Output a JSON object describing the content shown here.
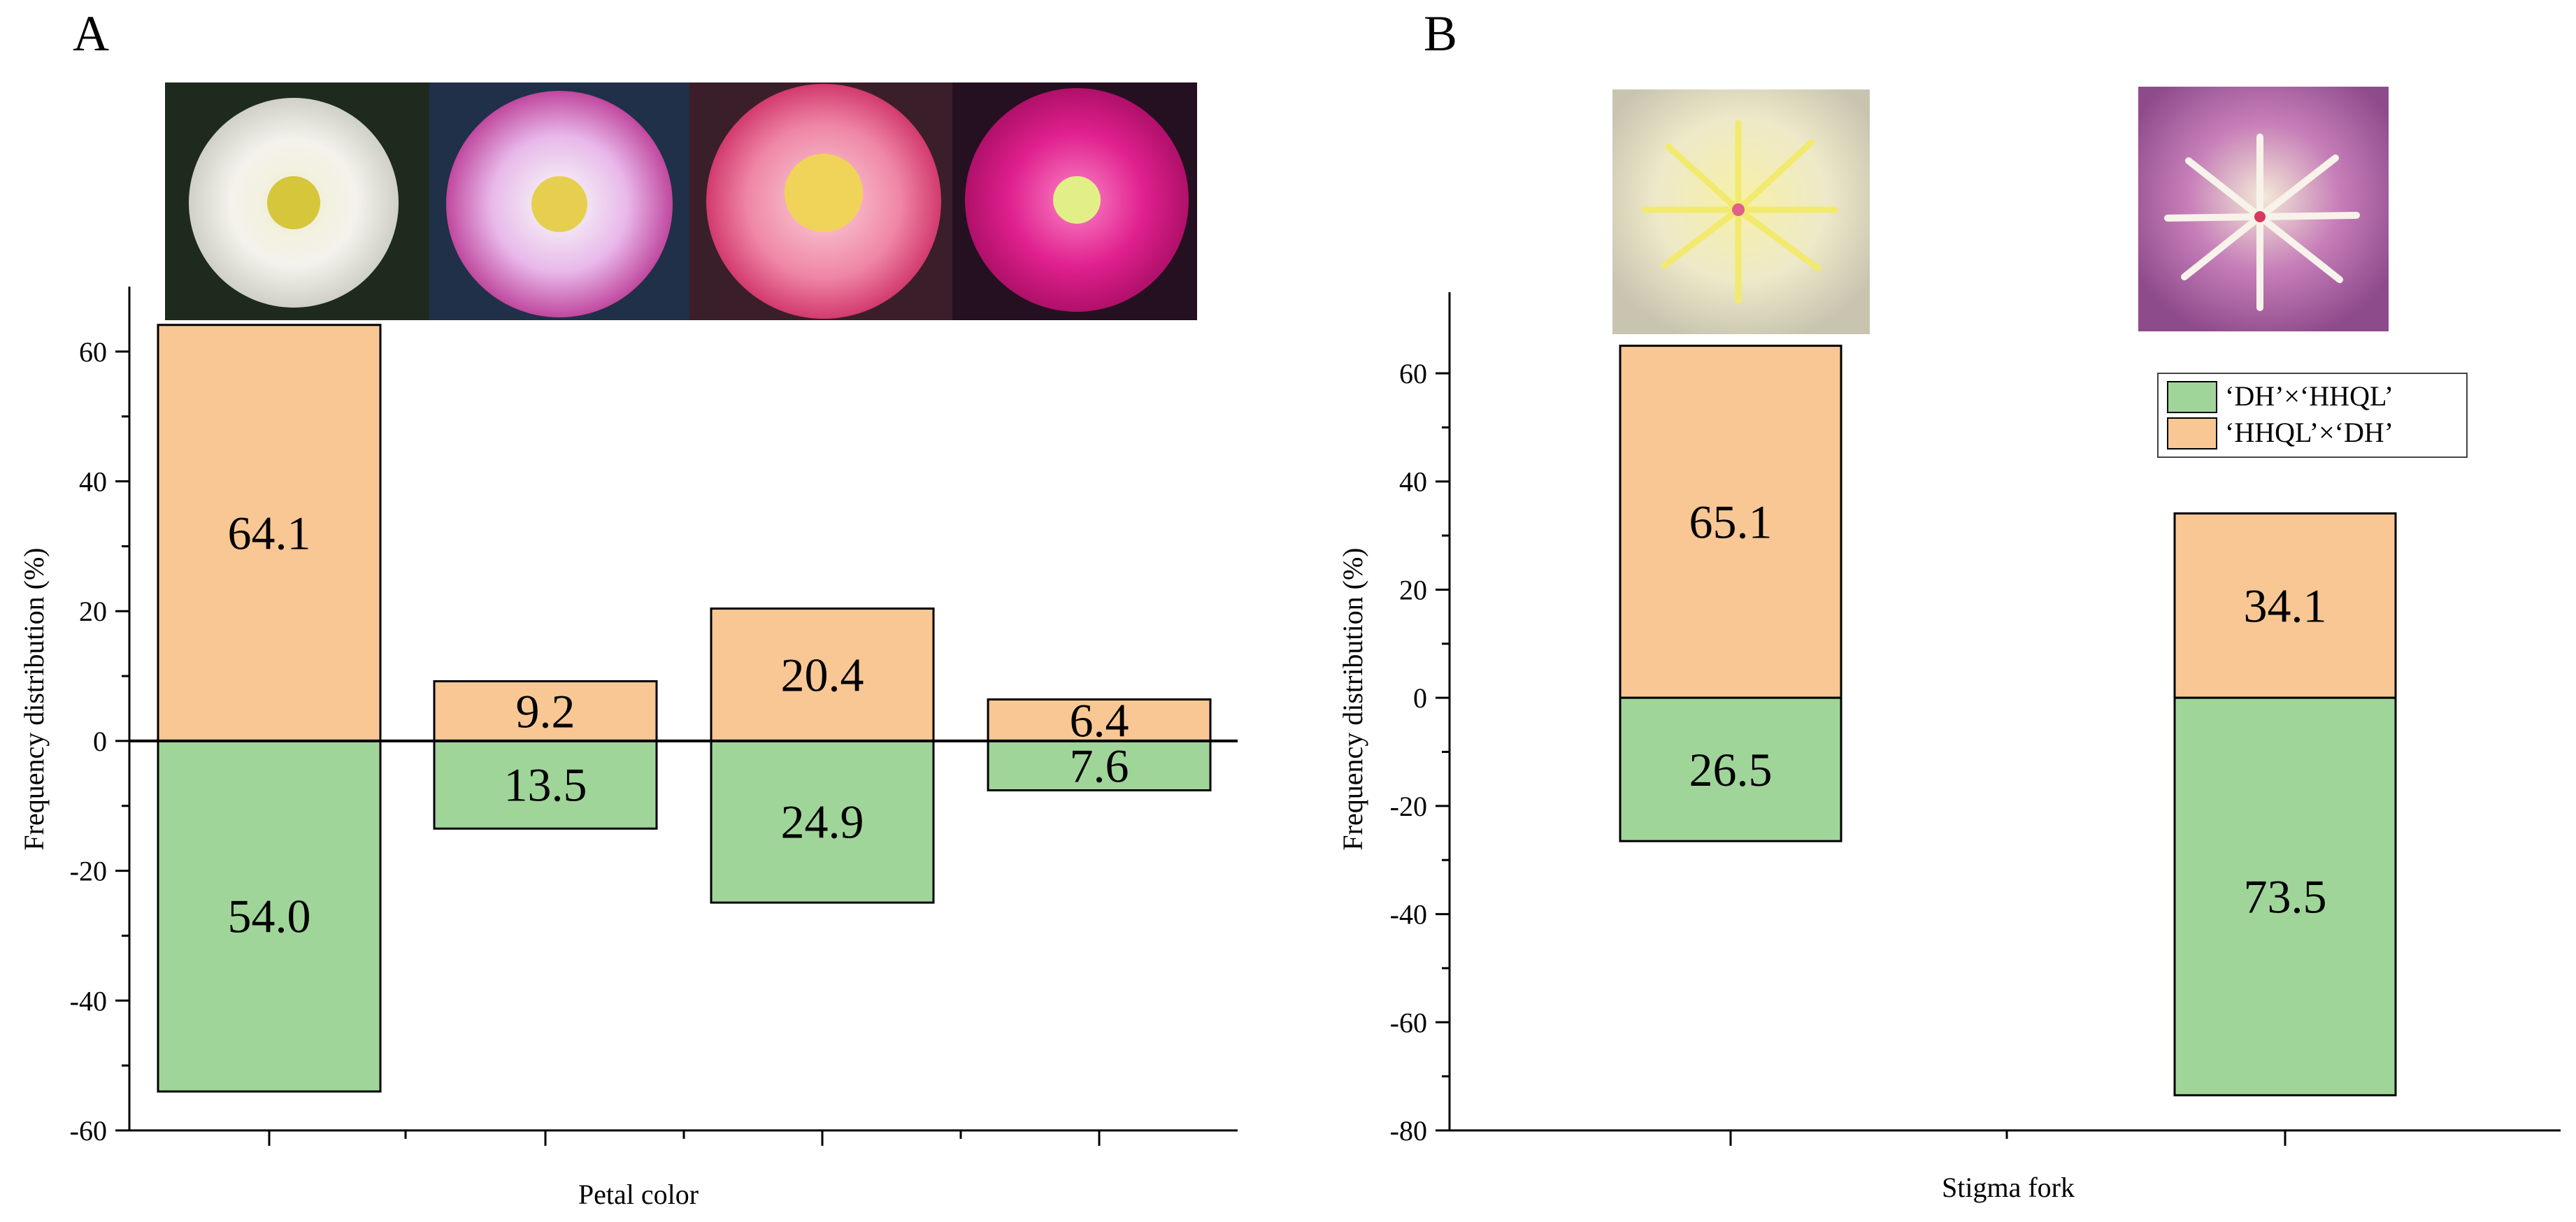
{
  "colors": {
    "hhql_x_dh": "#f8c794",
    "dh_x_hhql": "#a0d59a",
    "axis": "#000000"
  },
  "chart_data": [
    {
      "panel_label": "A",
      "type": "bar",
      "stacked": "diverging",
      "xlabel": "Petal color",
      "ylabel": "Frequency distribution (%)",
      "ylim": [
        -60,
        70
      ],
      "yticks": [
        -60,
        -40,
        -20,
        0,
        20,
        40,
        60
      ],
      "photos": [
        "white-flower-photo",
        "pale-pink-flower-photo",
        "pink-flower-photo",
        "magenta-flower-photo"
      ],
      "series": [
        {
          "key": "hhql_x_dh",
          "values": [
            64.1,
            9.2,
            20.4,
            6.4
          ],
          "labels": [
            "64.1",
            "9.2",
            "20.4",
            "6.4"
          ]
        },
        {
          "key": "dh_x_hhql",
          "values": [
            -54.0,
            -13.5,
            -24.9,
            -7.6
          ],
          "labels": [
            "54.0",
            "13.5",
            "24.9",
            "7.6"
          ]
        }
      ]
    },
    {
      "panel_label": "B",
      "type": "bar",
      "stacked": "diverging",
      "xlabel": "Stigma fork",
      "ylabel": "Frequency distribution (%)",
      "ylim": [
        -80,
        75
      ],
      "yticks": [
        -80,
        -60,
        -40,
        -20,
        0,
        20,
        40,
        60
      ],
      "photos": [
        "yellow-stigma-photo",
        "white-stigma-photo"
      ],
      "legend": {
        "position": "top-right",
        "entries": [
          {
            "label": "‘DH’×‘HHQL’",
            "color_key": "dh_x_hhql"
          },
          {
            "label": "‘HHQL’×‘DH’",
            "color_key": "hhql_x_dh"
          }
        ]
      },
      "series": [
        {
          "key": "hhql_x_dh",
          "values": [
            65.1,
            34.1
          ],
          "labels": [
            "65.1",
            "34.1"
          ]
        },
        {
          "key": "dh_x_hhql",
          "values": [
            -26.5,
            -73.5
          ],
          "labels": [
            "26.5",
            "73.5"
          ]
        }
      ]
    }
  ]
}
